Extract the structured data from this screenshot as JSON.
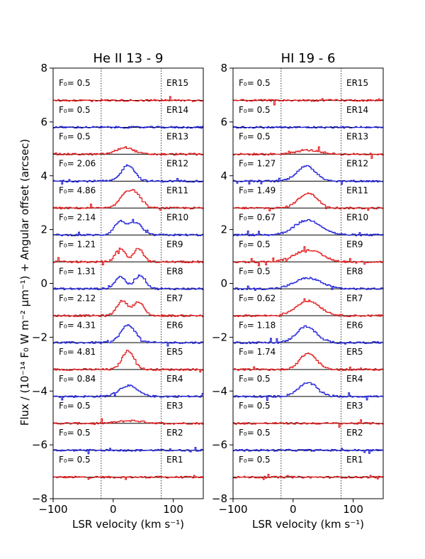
{
  "figure": {
    "ylabel": "Flux / (10⁻¹⁴ F₀ W m⁻² μm⁻¹) + Angular offset (arcsec)",
    "xlabel": "LSR velocity (km s⁻¹)"
  },
  "chart_data": [
    {
      "type": "line",
      "title": "He II 13 - 9",
      "xlabel": "LSR velocity (km s⁻¹)",
      "ylabel": "Flux / (10⁻¹⁴ F₀ W m⁻² μm⁻¹) + Angular offset (arcsec)",
      "xlim": [
        -100,
        150
      ],
      "ylim": [
        -8,
        8
      ],
      "xticks": [
        -100,
        0,
        100
      ],
      "yticks": [
        -8,
        -6,
        -4,
        -2,
        0,
        2,
        4,
        6,
        8
      ],
      "reference_lines_x": [
        -20,
        80
      ],
      "series": [
        {
          "name": "ER1",
          "scale": "F₀= 0.5",
          "baseline": -7.2,
          "color": "#e31a1c",
          "profile": {
            "type": "flat"
          }
        },
        {
          "name": "ER2",
          "scale": "F₀= 0.5",
          "baseline": -6.2,
          "color": "#1f1fd8",
          "profile": {
            "type": "flat"
          }
        },
        {
          "name": "ER3",
          "scale": "F₀= 0.5",
          "baseline": -5.2,
          "color": "#e31a1c",
          "profile": {
            "type": "gauss",
            "peaks": [
              {
                "center": 30,
                "sigma": 20,
                "amp": 0.1
              }
            ]
          }
        },
        {
          "name": "ER4",
          "scale": "F₀= 0.84",
          "baseline": -4.2,
          "color": "#1f1fd8",
          "profile": {
            "type": "gauss",
            "peaks": [
              {
                "center": 25,
                "sigma": 15,
                "amp": 0.4
              }
            ]
          }
        },
        {
          "name": "ER5",
          "scale": "F₀= 4.81",
          "baseline": -3.2,
          "color": "#e31a1c",
          "profile": {
            "type": "gauss",
            "peaks": [
              {
                "center": 25,
                "sigma": 10,
                "amp": 0.7
              }
            ]
          }
        },
        {
          "name": "ER6",
          "scale": "F₀= 4.31",
          "baseline": -2.2,
          "color": "#1f1fd8",
          "profile": {
            "type": "gauss",
            "peaks": [
              {
                "center": 25,
                "sigma": 12,
                "amp": 0.65
              }
            ]
          }
        },
        {
          "name": "ER7",
          "scale": "F₀= 2.12",
          "baseline": -1.2,
          "color": "#e31a1c",
          "profile": {
            "type": "gauss",
            "peaks": [
              {
                "center": 15,
                "sigma": 9,
                "amp": 0.55
              },
              {
                "center": 42,
                "sigma": 9,
                "amp": 0.5
              }
            ]
          }
        },
        {
          "name": "ER8",
          "scale": "F₀= 1.31",
          "baseline": -0.2,
          "color": "#1f1fd8",
          "profile": {
            "type": "gauss",
            "peaks": [
              {
                "center": 12,
                "sigma": 9,
                "amp": 0.45
              },
              {
                "center": 45,
                "sigma": 9,
                "amp": 0.5
              }
            ]
          }
        },
        {
          "name": "ER9",
          "scale": "F₀= 1.21",
          "baseline": 0.8,
          "color": "#e31a1c",
          "profile": {
            "type": "gauss",
            "peaks": [
              {
                "center": 12,
                "sigma": 8,
                "amp": 0.5
              },
              {
                "center": 42,
                "sigma": 8,
                "amp": 0.5
              }
            ]
          }
        },
        {
          "name": "ER10",
          "scale": "F₀= 2.14",
          "baseline": 1.8,
          "color": "#1f1fd8",
          "profile": {
            "type": "gauss",
            "peaks": [
              {
                "center": 12,
                "sigma": 10,
                "amp": 0.5
              },
              {
                "center": 38,
                "sigma": 10,
                "amp": 0.45
              }
            ]
          }
        },
        {
          "name": "ER11",
          "scale": "F₀= 4.86",
          "baseline": 2.8,
          "color": "#e31a1c",
          "profile": {
            "type": "gauss",
            "peaks": [
              {
                "center": 20,
                "sigma": 10,
                "amp": 0.5
              },
              {
                "center": 38,
                "sigma": 10,
                "amp": 0.5
              }
            ]
          }
        },
        {
          "name": "ER12",
          "scale": "F₀= 2.06",
          "baseline": 3.8,
          "color": "#1f1fd8",
          "profile": {
            "type": "gauss",
            "peaks": [
              {
                "center": 25,
                "sigma": 11,
                "amp": 0.6
              }
            ]
          }
        },
        {
          "name": "ER13",
          "scale": "F₀= 0.5",
          "baseline": 4.8,
          "color": "#e31a1c",
          "profile": {
            "type": "gauss",
            "peaks": [
              {
                "center": 20,
                "sigma": 14,
                "amp": 0.25
              }
            ]
          }
        },
        {
          "name": "ER14",
          "scale": "F₀= 0.5",
          "baseline": 5.8,
          "color": "#1f1fd8",
          "profile": {
            "type": "flat"
          }
        },
        {
          "name": "ER15",
          "scale": "F₀= 0.5",
          "baseline": 6.8,
          "color": "#e31a1c",
          "profile": {
            "type": "flat"
          }
        }
      ]
    },
    {
      "type": "line",
      "title": "HI 19 - 6",
      "xlabel": "LSR velocity (km s⁻¹)",
      "ylabel": "",
      "xlim": [
        -100,
        150
      ],
      "ylim": [
        -8,
        8
      ],
      "xticks": [
        -100,
        0,
        100
      ],
      "yticks": [
        -8,
        -6,
        -4,
        -2,
        0,
        2,
        4,
        6,
        8
      ],
      "reference_lines_x": [
        -20,
        80
      ],
      "series": [
        {
          "name": "ER1",
          "scale": "F₀= 0.5",
          "baseline": -7.2,
          "color": "#e31a1c",
          "profile": {
            "type": "flat"
          }
        },
        {
          "name": "ER2",
          "scale": "F₀= 0.5",
          "baseline": -6.2,
          "color": "#1f1fd8",
          "profile": {
            "type": "flat"
          }
        },
        {
          "name": "ER3",
          "scale": "F₀= 0.5",
          "baseline": -5.2,
          "color": "#e31a1c",
          "profile": {
            "type": "flat"
          }
        },
        {
          "name": "ER4",
          "scale": "F₀= 0.5",
          "baseline": -4.2,
          "color": "#1f1fd8",
          "profile": {
            "type": "gauss",
            "peaks": [
              {
                "center": 25,
                "sigma": 16,
                "amp": 0.5
              }
            ]
          }
        },
        {
          "name": "ER5",
          "scale": "F₀= 1.74",
          "baseline": -3.2,
          "color": "#e31a1c",
          "profile": {
            "type": "gauss",
            "peaks": [
              {
                "center": 25,
                "sigma": 14,
                "amp": 0.6
              }
            ]
          }
        },
        {
          "name": "ER6",
          "scale": "F₀= 1.18",
          "baseline": -2.2,
          "color": "#1f1fd8",
          "profile": {
            "type": "gauss",
            "peaks": [
              {
                "center": 22,
                "sigma": 16,
                "amp": 0.6
              }
            ]
          }
        },
        {
          "name": "ER7",
          "scale": "F₀= 0.62",
          "baseline": -1.2,
          "color": "#e31a1c",
          "profile": {
            "type": "gauss",
            "peaks": [
              {
                "center": 25,
                "sigma": 20,
                "amp": 0.55
              }
            ]
          }
        },
        {
          "name": "ER8",
          "scale": "F₀= 0.5",
          "baseline": -0.2,
          "color": "#1f1fd8",
          "profile": {
            "type": "gauss",
            "peaks": [
              {
                "center": 25,
                "sigma": 22,
                "amp": 0.4
              }
            ]
          }
        },
        {
          "name": "ER9",
          "scale": "F₀= 0.5",
          "baseline": 0.8,
          "color": "#e31a1c",
          "profile": {
            "type": "gauss",
            "peaks": [
              {
                "center": 25,
                "sigma": 22,
                "amp": 0.45
              }
            ]
          }
        },
        {
          "name": "ER10",
          "scale": "F₀= 0.67",
          "baseline": 1.8,
          "color": "#1f1fd8",
          "profile": {
            "type": "gauss",
            "peaks": [
              {
                "center": 25,
                "sigma": 22,
                "amp": 0.55
              }
            ]
          }
        },
        {
          "name": "ER11",
          "scale": "F₀= 1.49",
          "baseline": 2.8,
          "color": "#e31a1c",
          "profile": {
            "type": "gauss",
            "peaks": [
              {
                "center": 25,
                "sigma": 16,
                "amp": 0.55
              }
            ]
          }
        },
        {
          "name": "ER12",
          "scale": "F₀= 1.27",
          "baseline": 3.8,
          "color": "#1f1fd8",
          "profile": {
            "type": "gauss",
            "peaks": [
              {
                "center": 22,
                "sigma": 16,
                "amp": 0.55
              }
            ]
          }
        },
        {
          "name": "ER13",
          "scale": "F₀= 0.5",
          "baseline": 4.8,
          "color": "#e31a1c",
          "profile": {
            "type": "gauss",
            "peaks": [
              {
                "center": 25,
                "sigma": 20,
                "amp": 0.15
              }
            ]
          }
        },
        {
          "name": "ER14",
          "scale": "F₀= 0.5",
          "baseline": 5.8,
          "color": "#1f1fd8",
          "profile": {
            "type": "flat"
          }
        },
        {
          "name": "ER15",
          "scale": "F₀= 0.5",
          "baseline": 6.8,
          "color": "#e31a1c",
          "profile": {
            "type": "flat"
          }
        }
      ]
    }
  ]
}
